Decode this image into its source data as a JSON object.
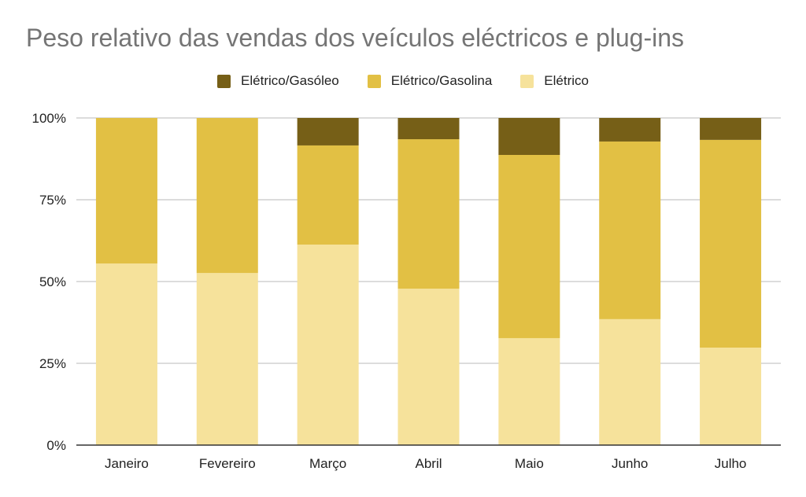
{
  "chart_data": {
    "type": "bar",
    "stacked": "percent",
    "title": "Peso relativo das vendas dos veículos eléctricos e plug-ins",
    "xlabel": "",
    "ylabel": "",
    "ylim": [
      0,
      100
    ],
    "yticks": [
      "0%",
      "25%",
      "50%",
      "75%",
      "100%"
    ],
    "ytick_values": [
      0,
      25,
      50,
      75,
      100
    ],
    "grid": true,
    "legend_position": "top",
    "categories": [
      "Janeiro",
      "Fevereiro",
      "Março",
      "Abril",
      "Maio",
      "Junho",
      "Julho"
    ],
    "series": [
      {
        "name": "Elétrico",
        "color": "#f6e29b",
        "values": [
          55.5,
          52.6,
          61.3,
          47.8,
          32.7,
          38.5,
          29.8
        ]
      },
      {
        "name": "Elétrico/Gasolina",
        "color": "#e2c044",
        "values": [
          44.5,
          47.4,
          30.3,
          45.7,
          56.0,
          54.3,
          63.5
        ]
      },
      {
        "name": "Elétrico/Gasóleo",
        "color": "#765f17",
        "values": [
          0,
          0,
          8.4,
          6.5,
          11.3,
          7.2,
          6.7
        ]
      }
    ],
    "legend_order": [
      "Elétrico/Gasóleo",
      "Elétrico/Gasolina",
      "Elétrico"
    ]
  }
}
